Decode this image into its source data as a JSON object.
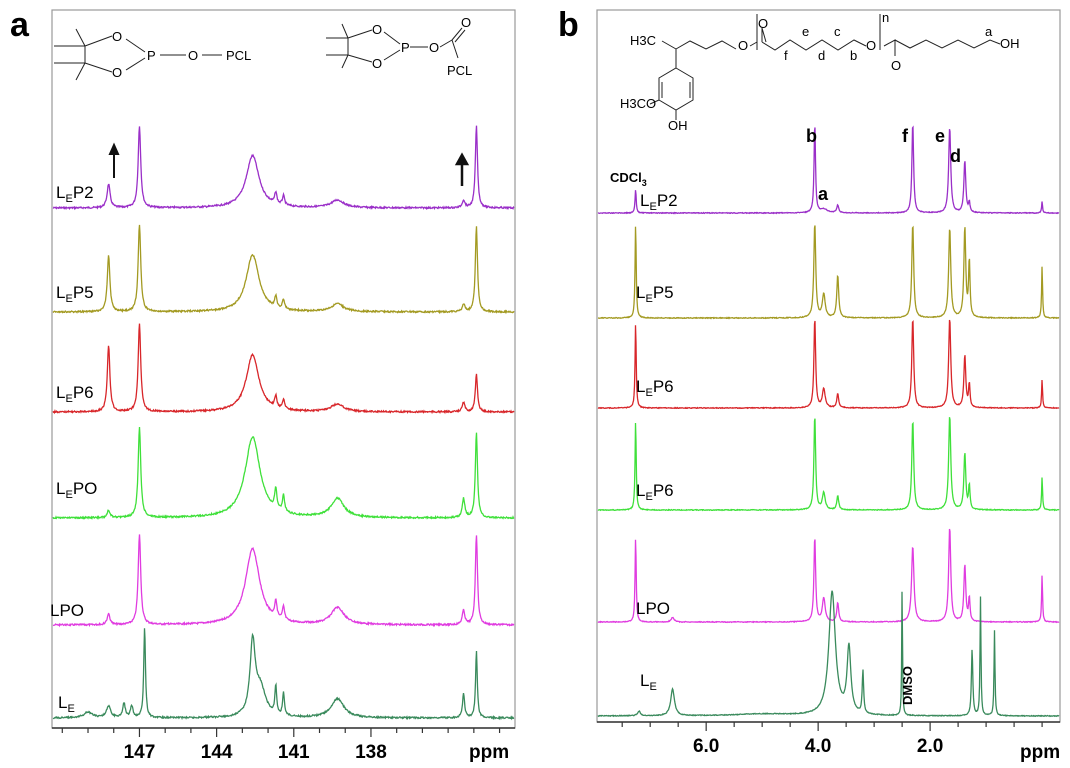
{
  "chart_data": [
    {
      "type": "line",
      "panel": "a",
      "title": "",
      "xlabel": "ppm",
      "ylabel": "",
      "xlim": [
        150.4,
        132.4
      ],
      "x_reversed": true,
      "x_ticks": [
        "147",
        "144",
        "141",
        "138"
      ],
      "x_tick_values": [
        147,
        144,
        141,
        138
      ],
      "grid": false,
      "structure_labels": {
        "left": {
          "o1": "O",
          "o2": "O",
          "p": "P",
          "o3": "O",
          "pcl": "PCL"
        },
        "right": {
          "o1": "O",
          "o2": "O",
          "p": "P",
          "o3": "O",
          "o4": "O",
          "pcl": "PCL"
        }
      },
      "annotations": [
        "arrow at 148.2 ppm",
        "arrow at 134.4 ppm"
      ],
      "series": [
        {
          "name": "LEP2",
          "label_main": "L",
          "label_sub": "E",
          "label_tail": "P2",
          "color": "#9a2fc8",
          "peaks": [
            [
              148.2,
              25,
              0.07
            ],
            [
              147.0,
              86,
              0.06
            ],
            [
              142.6,
              55,
              0.3
            ],
            [
              141.7,
              12,
              0.05
            ],
            [
              141.4,
              10,
              0.05
            ],
            [
              139.3,
              8,
              0.3
            ],
            [
              134.4,
              8,
              0.06
            ],
            [
              133.9,
              86,
              0.05
            ]
          ]
        },
        {
          "name": "LEP5",
          "label_main": "L",
          "label_sub": "E",
          "label_tail": "P5",
          "color": "#a39a22",
          "peaks": [
            [
              148.2,
              60,
              0.06
            ],
            [
              147.0,
              92,
              0.06
            ],
            [
              142.6,
              60,
              0.3
            ],
            [
              141.7,
              12,
              0.05
            ],
            [
              141.4,
              10,
              0.05
            ],
            [
              139.3,
              8,
              0.3
            ],
            [
              134.4,
              8,
              0.06
            ],
            [
              133.9,
              90,
              0.05
            ]
          ]
        },
        {
          "name": "LEP6",
          "label_main": "L",
          "label_sub": "E",
          "label_tail": "P6",
          "color": "#d8262a",
          "peaks": [
            [
              148.2,
              70,
              0.06
            ],
            [
              147.0,
              92,
              0.06
            ],
            [
              142.6,
              60,
              0.3
            ],
            [
              141.7,
              12,
              0.05
            ],
            [
              141.4,
              10,
              0.05
            ],
            [
              139.3,
              8,
              0.3
            ],
            [
              134.4,
              10,
              0.06
            ],
            [
              133.9,
              40,
              0.05
            ]
          ]
        },
        {
          "name": "LEPO",
          "label_main": "L",
          "label_sub": "E",
          "label_tail": "PO",
          "color": "#3fe03a",
          "peaks": [
            [
              148.2,
              8,
              0.06
            ],
            [
              147.0,
              95,
              0.06
            ],
            [
              142.6,
              85,
              0.35
            ],
            [
              141.7,
              22,
              0.05
            ],
            [
              141.4,
              18,
              0.05
            ],
            [
              139.3,
              20,
              0.3
            ],
            [
              134.4,
              20,
              0.06
            ],
            [
              133.9,
              90,
              0.05
            ]
          ]
        },
        {
          "name": "LPO",
          "label_main": "LPO",
          "label_sub": "",
          "label_tail": "",
          "color": "#e03ce0",
          "peaks": [
            [
              148.2,
              12,
              0.06
            ],
            [
              147.0,
              95,
              0.06
            ],
            [
              142.6,
              80,
              0.33
            ],
            [
              141.7,
              18,
              0.05
            ],
            [
              141.4,
              14,
              0.05
            ],
            [
              139.3,
              18,
              0.3
            ],
            [
              134.4,
              15,
              0.06
            ],
            [
              133.9,
              95,
              0.05
            ]
          ]
        },
        {
          "name": "LE",
          "label_main": "L",
          "label_sub": "E",
          "label_tail": "",
          "color": "#3a8a5c",
          "peaks": [
            [
              149.0,
              6,
              0.2
            ],
            [
              148.2,
              12,
              0.1
            ],
            [
              147.6,
              15,
              0.06
            ],
            [
              147.3,
              12,
              0.06
            ],
            [
              146.8,
              95,
              0.04
            ],
            [
              142.6,
              75,
              0.12
            ],
            [
              142.3,
              30,
              0.25
            ],
            [
              141.7,
              30,
              0.04
            ],
            [
              141.4,
              25,
              0.04
            ],
            [
              139.3,
              20,
              0.3
            ],
            [
              134.4,
              25,
              0.05
            ],
            [
              133.9,
              70,
              0.04
            ]
          ]
        }
      ]
    },
    {
      "type": "line",
      "panel": "b",
      "title": "",
      "xlabel": "ppm",
      "ylabel": "",
      "xlim": [
        7.95,
        -0.32
      ],
      "x_reversed": true,
      "x_ticks": [
        "6.0",
        "4.0",
        "2.0"
      ],
      "x_tick_values": [
        6.0,
        4.0,
        2.0
      ],
      "grid": false,
      "structure_labels": {
        "h3c": "H3C",
        "h3co": "H3CO",
        "oh1": "OH",
        "oh2": "OH",
        "o1": "O",
        "o2": "O",
        "o3": "O",
        "o4": "O",
        "n": "n",
        "a": "a",
        "b": "b",
        "c": "c",
        "d": "d",
        "e": "e",
        "f": "f"
      },
      "peak_labels": {
        "b": "b",
        "a": "a",
        "f": "f",
        "e": "e",
        "d": "d",
        "cdcl3": "CDCl",
        "cdcl3_sub": "3",
        "dmso": "DMSO"
      },
      "series": [
        {
          "name": "LEP2",
          "label_main": "L",
          "label_sub": "E",
          "label_tail": "P2",
          "color": "#9a2fc8",
          "peaks": [
            [
              7.26,
              25,
              0.012
            ],
            [
              4.06,
              95,
              0.015
            ],
            [
              3.9,
              4,
              0.08
            ],
            [
              3.65,
              8,
              0.02
            ],
            [
              2.31,
              95,
              0.018
            ],
            [
              1.65,
              90,
              0.022
            ],
            [
              1.38,
              55,
              0.02
            ],
            [
              1.3,
              10,
              0.015
            ],
            [
              0.0,
              12,
              0.01
            ]
          ]
        },
        {
          "name": "LEP5",
          "label_main": "L",
          "label_sub": "E",
          "label_tail": "P5",
          "color": "#a39a22",
          "peaks": [
            [
              7.26,
              100,
              0.012
            ],
            [
              4.06,
              100,
              0.02
            ],
            [
              3.9,
              25,
              0.03
            ],
            [
              3.65,
              45,
              0.02
            ],
            [
              2.31,
              100,
              0.02
            ],
            [
              1.65,
              95,
              0.022
            ],
            [
              1.38,
              95,
              0.02
            ],
            [
              1.3,
              60,
              0.015
            ],
            [
              0.0,
              55,
              0.01
            ]
          ]
        },
        {
          "name": "LEP6",
          "label_main": "L",
          "label_sub": "E",
          "label_tail": "P6",
          "color": "#d8262a",
          "peaks": [
            [
              7.26,
              90,
              0.012
            ],
            [
              4.06,
              95,
              0.018
            ],
            [
              3.9,
              20,
              0.03
            ],
            [
              3.65,
              15,
              0.02
            ],
            [
              2.31,
              95,
              0.02
            ],
            [
              1.65,
              95,
              0.022
            ],
            [
              1.38,
              55,
              0.02
            ],
            [
              1.3,
              25,
              0.015
            ],
            [
              0.0,
              30,
              0.01
            ]
          ]
        },
        {
          "name": "LEP6-green",
          "label_main": "L",
          "label_sub": "E",
          "label_tail": "P6",
          "color": "#3fe03a",
          "peaks": [
            [
              7.26,
              95,
              0.012
            ],
            [
              4.06,
              100,
              0.018
            ],
            [
              3.9,
              18,
              0.03
            ],
            [
              3.65,
              15,
              0.02
            ],
            [
              2.31,
              95,
              0.02
            ],
            [
              1.65,
              100,
              0.022
            ],
            [
              1.38,
              60,
              0.02
            ],
            [
              1.3,
              25,
              0.015
            ],
            [
              0.0,
              35,
              0.01
            ]
          ]
        },
        {
          "name": "LPO",
          "label_main": "LPO",
          "label_sub": "",
          "label_tail": "",
          "color": "#e03ce0",
          "peaks": [
            [
              7.26,
              90,
              0.012
            ],
            [
              6.6,
              5,
              0.03
            ],
            [
              4.06,
              90,
              0.018
            ],
            [
              3.9,
              25,
              0.03
            ],
            [
              3.65,
              20,
              0.02
            ],
            [
              2.31,
              80,
              0.025
            ],
            [
              1.65,
              100,
              0.022
            ],
            [
              1.38,
              60,
              0.02
            ],
            [
              1.3,
              25,
              0.015
            ],
            [
              0.0,
              50,
              0.01
            ]
          ]
        },
        {
          "name": "LE",
          "label_main": "L",
          "label_sub": "E",
          "label_tail": "",
          "color": "#3a8a5c",
          "peaks": [
            [
              7.2,
              5,
              0.03
            ],
            [
              6.6,
              28,
              0.04
            ],
            [
              5.0,
              2,
              0.6
            ],
            [
              3.75,
              130,
              0.07
            ],
            [
              3.45,
              70,
              0.04
            ],
            [
              3.2,
              45,
              0.015
            ],
            [
              2.5,
              140,
              0.008
            ],
            [
              1.25,
              70,
              0.015
            ],
            [
              1.1,
              125,
              0.01
            ],
            [
              0.85,
              90,
              0.01
            ]
          ]
        }
      ]
    }
  ],
  "panel_letters": {
    "a": "a",
    "b": "b"
  }
}
